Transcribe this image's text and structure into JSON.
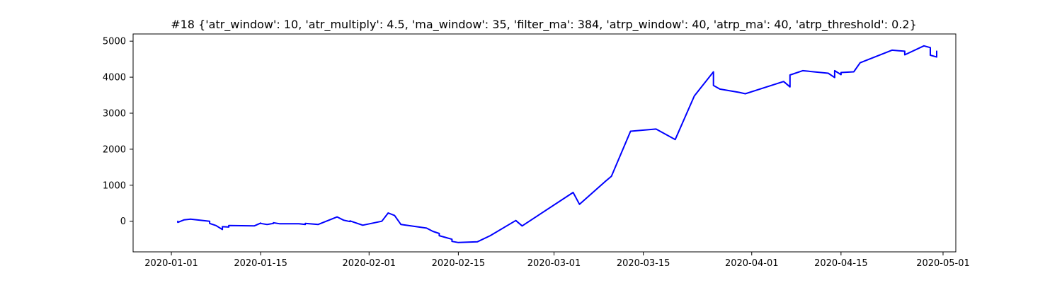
{
  "colors": {
    "series": "#0000ff",
    "axis": "#000000",
    "background": "#ffffff"
  },
  "chart_data": {
    "type": "line",
    "title": "#18 {'atr_window': 10, 'atr_multiply': 4.5, 'ma_window': 35, 'filter_ma': 384, 'atrp_window': 40, 'atrp_ma': 40, 'atrp_threshold': 0.2}",
    "xlabel": "",
    "ylabel": "",
    "grid": false,
    "legend": "none",
    "x_axis": {
      "scale": "date",
      "range": [
        "2019-12-26",
        "2020-05-03"
      ],
      "ticks": [
        "2020-01-01",
        "2020-01-15",
        "2020-02-01",
        "2020-02-15",
        "2020-03-01",
        "2020-03-15",
        "2020-04-01",
        "2020-04-15",
        "2020-05-01"
      ]
    },
    "y_axis": {
      "range": [
        -850,
        5200
      ],
      "ticks": [
        0,
        1000,
        2000,
        3000,
        4000,
        5000
      ]
    },
    "series": [
      {
        "color": "#0000ff",
        "points": [
          [
            "2020-01-02",
            0
          ],
          [
            "2020-01-02",
            -30
          ],
          [
            "2020-01-03",
            40
          ],
          [
            "2020-01-04",
            60
          ],
          [
            "2020-01-06",
            20
          ],
          [
            "2020-01-07",
            0
          ],
          [
            "2020-01-07",
            -60
          ],
          [
            "2020-01-08",
            -120
          ],
          [
            "2020-01-09",
            -230
          ],
          [
            "2020-01-09",
            -150
          ],
          [
            "2020-01-10",
            -160
          ],
          [
            "2020-01-10",
            -120
          ],
          [
            "2020-01-14",
            -130
          ],
          [
            "2020-01-15",
            -50
          ],
          [
            "2020-01-15",
            -60
          ],
          [
            "2020-01-16",
            -90
          ],
          [
            "2020-01-17",
            -60
          ],
          [
            "2020-01-17",
            -40
          ],
          [
            "2020-01-18",
            -70
          ],
          [
            "2020-01-21",
            -70
          ],
          [
            "2020-01-22",
            -90
          ],
          [
            "2020-01-22",
            -60
          ],
          [
            "2020-01-24",
            -90
          ],
          [
            "2020-01-27",
            120
          ],
          [
            "2020-01-28",
            30
          ],
          [
            "2020-01-29",
            -10
          ],
          [
            "2020-01-29",
            10
          ],
          [
            "2020-01-31",
            -110
          ],
          [
            "2020-02-03",
            0
          ],
          [
            "2020-02-04",
            230
          ],
          [
            "2020-02-05",
            160
          ],
          [
            "2020-02-06",
            -90
          ],
          [
            "2020-02-10",
            -190
          ],
          [
            "2020-02-11",
            -280
          ],
          [
            "2020-02-12",
            -340
          ],
          [
            "2020-02-12",
            -400
          ],
          [
            "2020-02-13",
            -450
          ],
          [
            "2020-02-14",
            -500
          ],
          [
            "2020-02-14",
            -560
          ],
          [
            "2020-02-15",
            -590
          ],
          [
            "2020-02-18",
            -570
          ],
          [
            "2020-02-20",
            -400
          ],
          [
            "2020-02-24",
            20
          ],
          [
            "2020-02-25",
            -130
          ],
          [
            "2020-03-04",
            800
          ],
          [
            "2020-03-05",
            470
          ],
          [
            "2020-03-09",
            1100
          ],
          [
            "2020-03-10",
            1250
          ],
          [
            "2020-03-13",
            2500
          ],
          [
            "2020-03-17",
            2560
          ],
          [
            "2020-03-20",
            2270
          ],
          [
            "2020-03-23",
            3480
          ],
          [
            "2020-03-26",
            4150
          ],
          [
            "2020-03-26",
            3770
          ],
          [
            "2020-03-27",
            3670
          ],
          [
            "2020-03-30",
            3580
          ],
          [
            "2020-03-31",
            3540
          ],
          [
            "2020-04-06",
            3880
          ],
          [
            "2020-04-07",
            3730
          ],
          [
            "2020-04-07",
            4060
          ],
          [
            "2020-04-09",
            4180
          ],
          [
            "2020-04-13",
            4110
          ],
          [
            "2020-04-14",
            3990
          ],
          [
            "2020-04-14",
            4180
          ],
          [
            "2020-04-15",
            4070
          ],
          [
            "2020-04-15",
            4130
          ],
          [
            "2020-04-17",
            4150
          ],
          [
            "2020-04-18",
            4400
          ],
          [
            "2020-04-23",
            4750
          ],
          [
            "2020-04-25",
            4720
          ],
          [
            "2020-04-25",
            4620
          ],
          [
            "2020-04-28",
            4870
          ],
          [
            "2020-04-29",
            4820
          ],
          [
            "2020-04-29",
            4610
          ],
          [
            "2020-04-30",
            4560
          ],
          [
            "2020-04-30",
            4720
          ]
        ]
      }
    ]
  }
}
